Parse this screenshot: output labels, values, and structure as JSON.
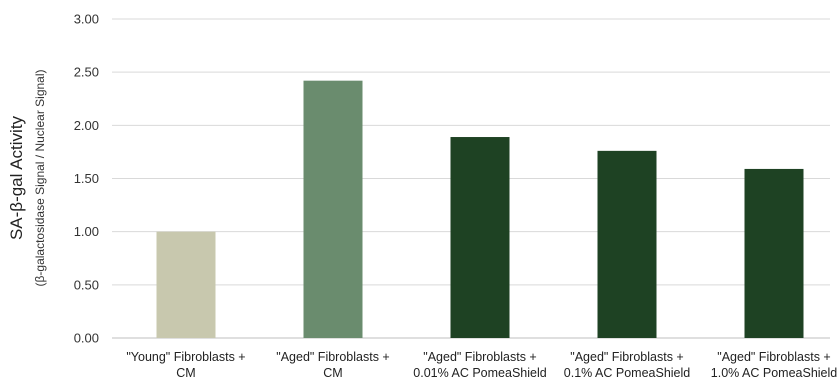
{
  "chart_data": {
    "type": "bar",
    "title": "",
    "ylabel": "SA-β-gal Activity",
    "ylabel_sub": "(β-galactosidase Signal / Nuclear Signal)",
    "xlabel": "",
    "ylim": [
      0,
      3
    ],
    "yticks": [
      "0.00",
      "0.50",
      "1.00",
      "1.50",
      "2.00",
      "2.50",
      "3.00"
    ],
    "grid": true,
    "categories": [
      [
        "\"Young\" Fibroblasts +",
        "CM"
      ],
      [
        "\"Aged\" Fibroblasts +",
        "CM"
      ],
      [
        "\"Aged\" Fibroblasts +",
        "0.01% AC PomeaShield"
      ],
      [
        "\"Aged\" Fibroblasts +",
        "0.1% AC PomeaShield"
      ],
      [
        "\"Aged\" Fibroblasts +",
        "1.0% AC PomeaShield"
      ]
    ],
    "values": [
      1.0,
      2.42,
      1.89,
      1.76,
      1.59
    ],
    "colors": [
      "#c8c8ae",
      "#6a8c6e",
      "#1e4223",
      "#1e4223",
      "#1e4223"
    ]
  }
}
